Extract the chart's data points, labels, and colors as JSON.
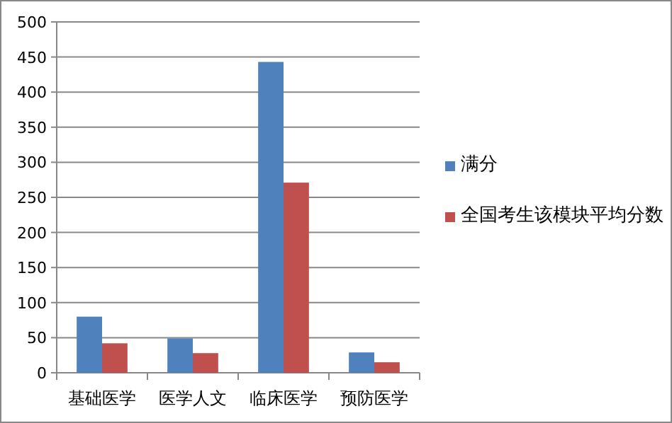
{
  "chart_data": {
    "type": "bar",
    "categories": [
      "基础医学",
      "医学人文",
      "临床医学",
      "预防医学"
    ],
    "series": [
      {
        "name": "满分",
        "color": "#4f81bd",
        "values": [
          80,
          49,
          443,
          29
        ]
      },
      {
        "name": "全国考生该模块平均分数",
        "color": "#c0504d",
        "values": [
          42,
          28,
          271,
          15
        ]
      }
    ],
    "ylim": [
      0,
      500
    ],
    "yticks": [
      0,
      50,
      100,
      150,
      200,
      250,
      300,
      350,
      400,
      450,
      500
    ],
    "grid": "y",
    "legend": "right"
  }
}
